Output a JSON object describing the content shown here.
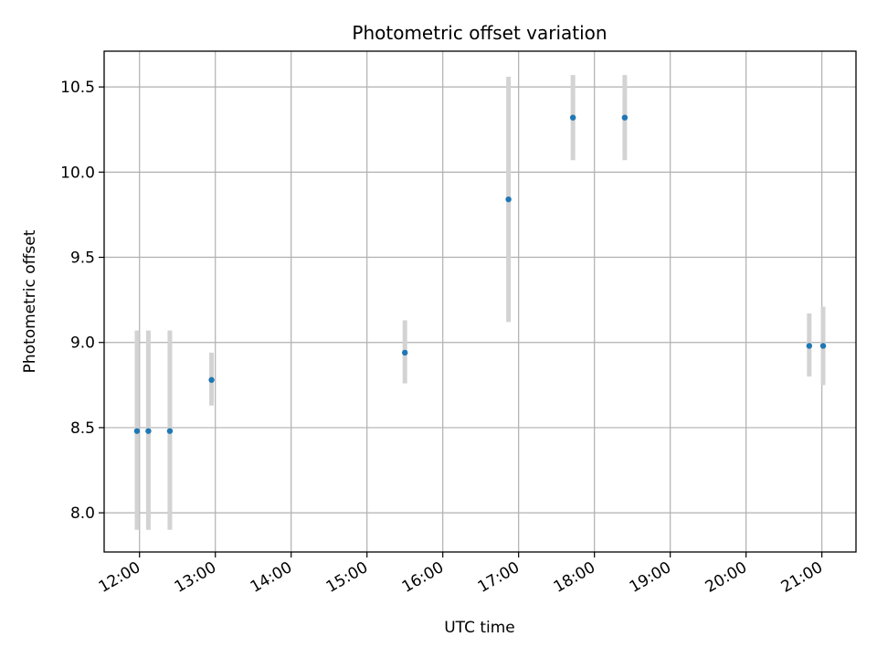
{
  "chart_data": {
    "type": "scatter",
    "title": "Photometric offset variation",
    "xlabel": "UTC time",
    "ylabel": "Photometric offset",
    "x_tick_labels": [
      "12:00",
      "13:00",
      "14:00",
      "15:00",
      "16:00",
      "17:00",
      "18:00",
      "19:00",
      "20:00",
      "21:00"
    ],
    "y_tick_labels": [
      "8.0",
      "8.5",
      "9.0",
      "9.5",
      "10.0",
      "10.5"
    ],
    "xlim": [
      "11:32",
      "21:27"
    ],
    "ylim": [
      7.77,
      10.71
    ],
    "grid": true,
    "series": [
      {
        "marker_color": "#1f77b4",
        "errorbar_color": "#d3d3d3",
        "points": [
          {
            "x": "11:58",
            "y": 8.48,
            "err_low": 7.9,
            "err_high": 9.07
          },
          {
            "x": "12:07",
            "y": 8.48,
            "err_low": 7.9,
            "err_high": 9.07
          },
          {
            "x": "12:24",
            "y": 8.48,
            "err_low": 7.9,
            "err_high": 9.07
          },
          {
            "x": "12:57",
            "y": 8.78,
            "err_low": 8.63,
            "err_high": 8.94
          },
          {
            "x": "15:30",
            "y": 8.94,
            "err_low": 8.76,
            "err_high": 9.13
          },
          {
            "x": "16:52",
            "y": 9.84,
            "err_low": 9.12,
            "err_high": 10.56
          },
          {
            "x": "17:43",
            "y": 10.32,
            "err_low": 10.07,
            "err_high": 10.57
          },
          {
            "x": "18:24",
            "y": 10.32,
            "err_low": 10.07,
            "err_high": 10.57
          },
          {
            "x": "20:50",
            "y": 8.98,
            "err_low": 8.8,
            "err_high": 9.17
          },
          {
            "x": "21:01",
            "y": 8.98,
            "err_low": 8.75,
            "err_high": 9.21
          }
        ]
      }
    ]
  }
}
